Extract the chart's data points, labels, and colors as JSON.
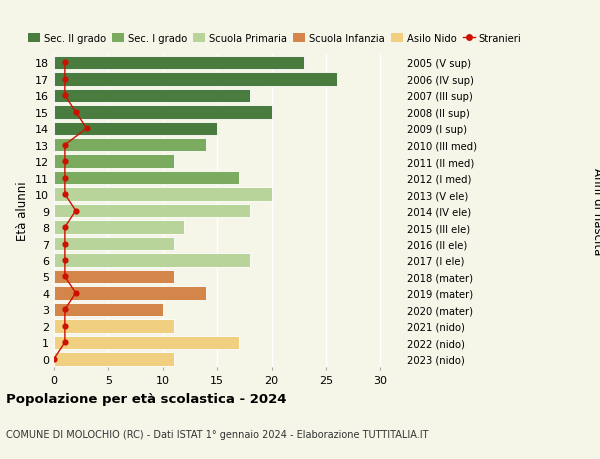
{
  "ages": [
    18,
    17,
    16,
    15,
    14,
    13,
    12,
    11,
    10,
    9,
    8,
    7,
    6,
    5,
    4,
    3,
    2,
    1,
    0
  ],
  "right_labels": [
    "2005 (V sup)",
    "2006 (IV sup)",
    "2007 (III sup)",
    "2008 (II sup)",
    "2009 (I sup)",
    "2010 (III med)",
    "2011 (II med)",
    "2012 (I med)",
    "2013 (V ele)",
    "2014 (IV ele)",
    "2015 (III ele)",
    "2016 (II ele)",
    "2017 (I ele)",
    "2018 (mater)",
    "2019 (mater)",
    "2020 (mater)",
    "2021 (nido)",
    "2022 (nido)",
    "2023 (nido)"
  ],
  "bar_values": [
    23,
    26,
    18,
    20,
    15,
    14,
    11,
    17,
    20,
    18,
    12,
    11,
    18,
    11,
    14,
    10,
    11,
    17,
    11
  ],
  "stranieri": [
    1,
    1,
    1,
    2,
    3,
    1,
    1,
    1,
    1,
    2,
    1,
    1,
    1,
    1,
    2,
    1,
    1,
    1,
    0
  ],
  "bar_colors": [
    "#4a7c3f",
    "#4a7c3f",
    "#4a7c3f",
    "#4a7c3f",
    "#4a7c3f",
    "#7aab5e",
    "#7aab5e",
    "#7aab5e",
    "#b8d49a",
    "#b8d49a",
    "#b8d49a",
    "#b8d49a",
    "#b8d49a",
    "#d4854a",
    "#d4854a",
    "#d4854a",
    "#f0d080",
    "#f0d080",
    "#f0d080"
  ],
  "legend_colors": [
    "#4a7c3f",
    "#7aab5e",
    "#b8d49a",
    "#d4854a",
    "#f0d080"
  ],
  "legend_labels": [
    "Sec. II grado",
    "Sec. I grado",
    "Scuola Primaria",
    "Scuola Infanzia",
    "Asilo Nido"
  ],
  "stranieri_color": "#cc1100",
  "title": "Popolazione per età scolastica - 2024",
  "subtitle": "COMUNE DI MOLOCHIO (RC) - Dati ISTAT 1° gennaio 2024 - Elaborazione TUTTITALIA.IT",
  "ylabel_left": "Età alunni",
  "ylabel_right": "Anni di nascita",
  "xlim": [
    0,
    32
  ],
  "xticks": [
    0,
    5,
    10,
    15,
    20,
    25,
    30
  ],
  "background_color": "#f5f5e8",
  "grid_color": "#ffffff",
  "bar_height": 0.82
}
